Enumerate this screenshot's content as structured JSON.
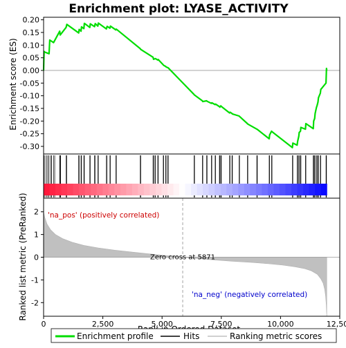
{
  "chart_data": {
    "type": "line",
    "title": "Enrichment plot: LYASE_ACTIVITY",
    "es_panel": {
      "ylabel": "Enrichment score (ES)",
      "ylim": [
        -0.33,
        0.21
      ],
      "yticks": [
        "0.20",
        "0.15",
        "0.10",
        "0.05",
        "0.00",
        "-0.05",
        "-0.10",
        "-0.15",
        "-0.20",
        "-0.25",
        "-0.30"
      ],
      "ytick_values": [
        0.2,
        0.15,
        0.1,
        0.05,
        0.0,
        -0.05,
        -0.1,
        -0.15,
        -0.2,
        -0.25,
        -0.3
      ],
      "line_color": "#00dd00",
      "series": [
        {
          "name": "Enrichment profile",
          "x": [
            0,
            20,
            60,
            230,
            260,
            420,
            680,
            700,
            950,
            980,
            1480,
            1500,
            1580,
            1600,
            1700,
            1720,
            1950,
            1970,
            2150,
            2180,
            2290,
            2310,
            2650,
            2680,
            2800,
            2820,
            3050,
            3070,
            4080,
            4100,
            4620,
            4640,
            4700,
            4720,
            4820,
            4840,
            5050,
            5070,
            5150,
            5170,
            5240,
            5260,
            6350,
            6370,
            6700,
            6720,
            6880,
            6900,
            7080,
            7100,
            7240,
            7260,
            7420,
            7440,
            7480,
            7500,
            7850,
            7870,
            7950,
            7970,
            8250,
            8270,
            8600,
            8620,
            9000,
            9020,
            9520,
            9540,
            9620,
            9640,
            10500,
            10520,
            10700,
            10720,
            10770,
            10790,
            10840,
            10860,
            11050,
            11070,
            11380,
            11400,
            11440,
            11460,
            11520,
            11540,
            11580,
            11600,
            11680,
            11700,
            11920,
            11940,
            11950
          ],
          "y": [
            0.0,
            0.075,
            0.072,
            0.066,
            0.12,
            0.11,
            0.155,
            0.14,
            0.17,
            0.182,
            0.148,
            0.162,
            0.155,
            0.172,
            0.165,
            0.186,
            0.17,
            0.184,
            0.173,
            0.185,
            0.175,
            0.187,
            0.164,
            0.174,
            0.167,
            0.175,
            0.16,
            0.163,
            0.086,
            0.083,
            0.052,
            0.044,
            0.046,
            0.047,
            0.041,
            0.043,
            0.022,
            0.02,
            0.016,
            0.014,
            0.011,
            0.01,
            -0.095,
            -0.097,
            -0.12,
            -0.123,
            -0.12,
            -0.122,
            -0.13,
            -0.128,
            -0.135,
            -0.133,
            -0.143,
            -0.145,
            -0.14,
            -0.142,
            -0.168,
            -0.165,
            -0.17,
            -0.172,
            -0.18,
            -0.182,
            -0.21,
            -0.212,
            -0.232,
            -0.233,
            -0.27,
            -0.255,
            -0.24,
            -0.242,
            -0.305,
            -0.287,
            -0.295,
            -0.28,
            -0.26,
            -0.245,
            -0.24,
            -0.225,
            -0.232,
            -0.21,
            -0.23,
            -0.2,
            -0.19,
            -0.17,
            -0.145,
            -0.14,
            -0.125,
            -0.108,
            -0.09,
            -0.075,
            -0.05,
            0.008,
            0.0
          ]
        }
      ]
    },
    "hits": [
      15,
      60,
      130,
      180,
      230,
      300,
      340,
      420,
      470,
      680,
      700,
      720,
      950,
      980,
      1480,
      1500,
      1580,
      1600,
      1700,
      1720,
      1950,
      1970,
      2150,
      2180,
      2290,
      2310,
      2650,
      2680,
      2800,
      2820,
      3050,
      3070,
      4080,
      4100,
      4620,
      4640,
      4700,
      4720,
      4820,
      4840,
      5050,
      5070,
      5150,
      5170,
      5240,
      5260,
      6350,
      6370,
      6700,
      6720,
      6880,
      6900,
      7080,
      7100,
      7240,
      7260,
      7420,
      7440,
      7480,
      7500,
      7850,
      7870,
      7950,
      7970,
      8250,
      8270,
      8600,
      8620,
      9000,
      9020,
      9520,
      9540,
      9620,
      9640,
      10500,
      10520,
      10700,
      10720,
      10770,
      10790,
      10840,
      10860,
      11050,
      11070,
      11380,
      11400,
      11440,
      11460,
      11520,
      11540,
      11580,
      11600,
      11680,
      11700,
      11920,
      11940
    ],
    "rank_panel": {
      "ylabel": "Ranked list metric (PreRanked)",
      "ylim": [
        -2.6,
        2.6
      ],
      "yticks": [
        "2",
        "1",
        "0",
        "-1",
        "-2"
      ],
      "ytick_values": [
        2,
        1,
        0,
        -1,
        -2
      ],
      "metric_profile": {
        "x": [
          0,
          50,
          150,
          300,
          500,
          800,
          1200,
          1700,
          2300,
          3000,
          3800,
          4600,
          5300,
          5871,
          6500,
          7200,
          8000,
          8800,
          9500,
          10100,
          10600,
          11000,
          11300,
          11550,
          11700,
          11800,
          11860,
          11900,
          11930,
          11950
        ],
        "y": [
          2.0,
          1.75,
          1.45,
          1.2,
          1.0,
          0.82,
          0.66,
          0.52,
          0.41,
          0.31,
          0.22,
          0.13,
          0.06,
          0.0,
          -0.06,
          -0.12,
          -0.18,
          -0.23,
          -0.29,
          -0.35,
          -0.42,
          -0.5,
          -0.6,
          -0.75,
          -0.95,
          -1.15,
          -1.4,
          -1.7,
          -2.1,
          -2.6
        ]
      },
      "pos_label": "'na_pos' (positively correlated)",
      "neg_label": "'na_neg' (negatively correlated)",
      "zero_cross_label": "Zero cross at 5871",
      "zero_cross": 5871
    },
    "xaxis": {
      "label": "Rank in Ordered Dataset",
      "xlim": [
        0,
        12500
      ],
      "ticks": [
        "0",
        "2,500",
        "5,000",
        "7,500",
        "10,000",
        "12,500"
      ],
      "tick_values": [
        0,
        2500,
        5000,
        7500,
        10000,
        12500
      ],
      "n_genes": 11950
    },
    "legend": {
      "position": "bottom",
      "items": [
        "Enrichment profile",
        "Hits",
        "Ranking metric scores"
      ]
    }
  }
}
